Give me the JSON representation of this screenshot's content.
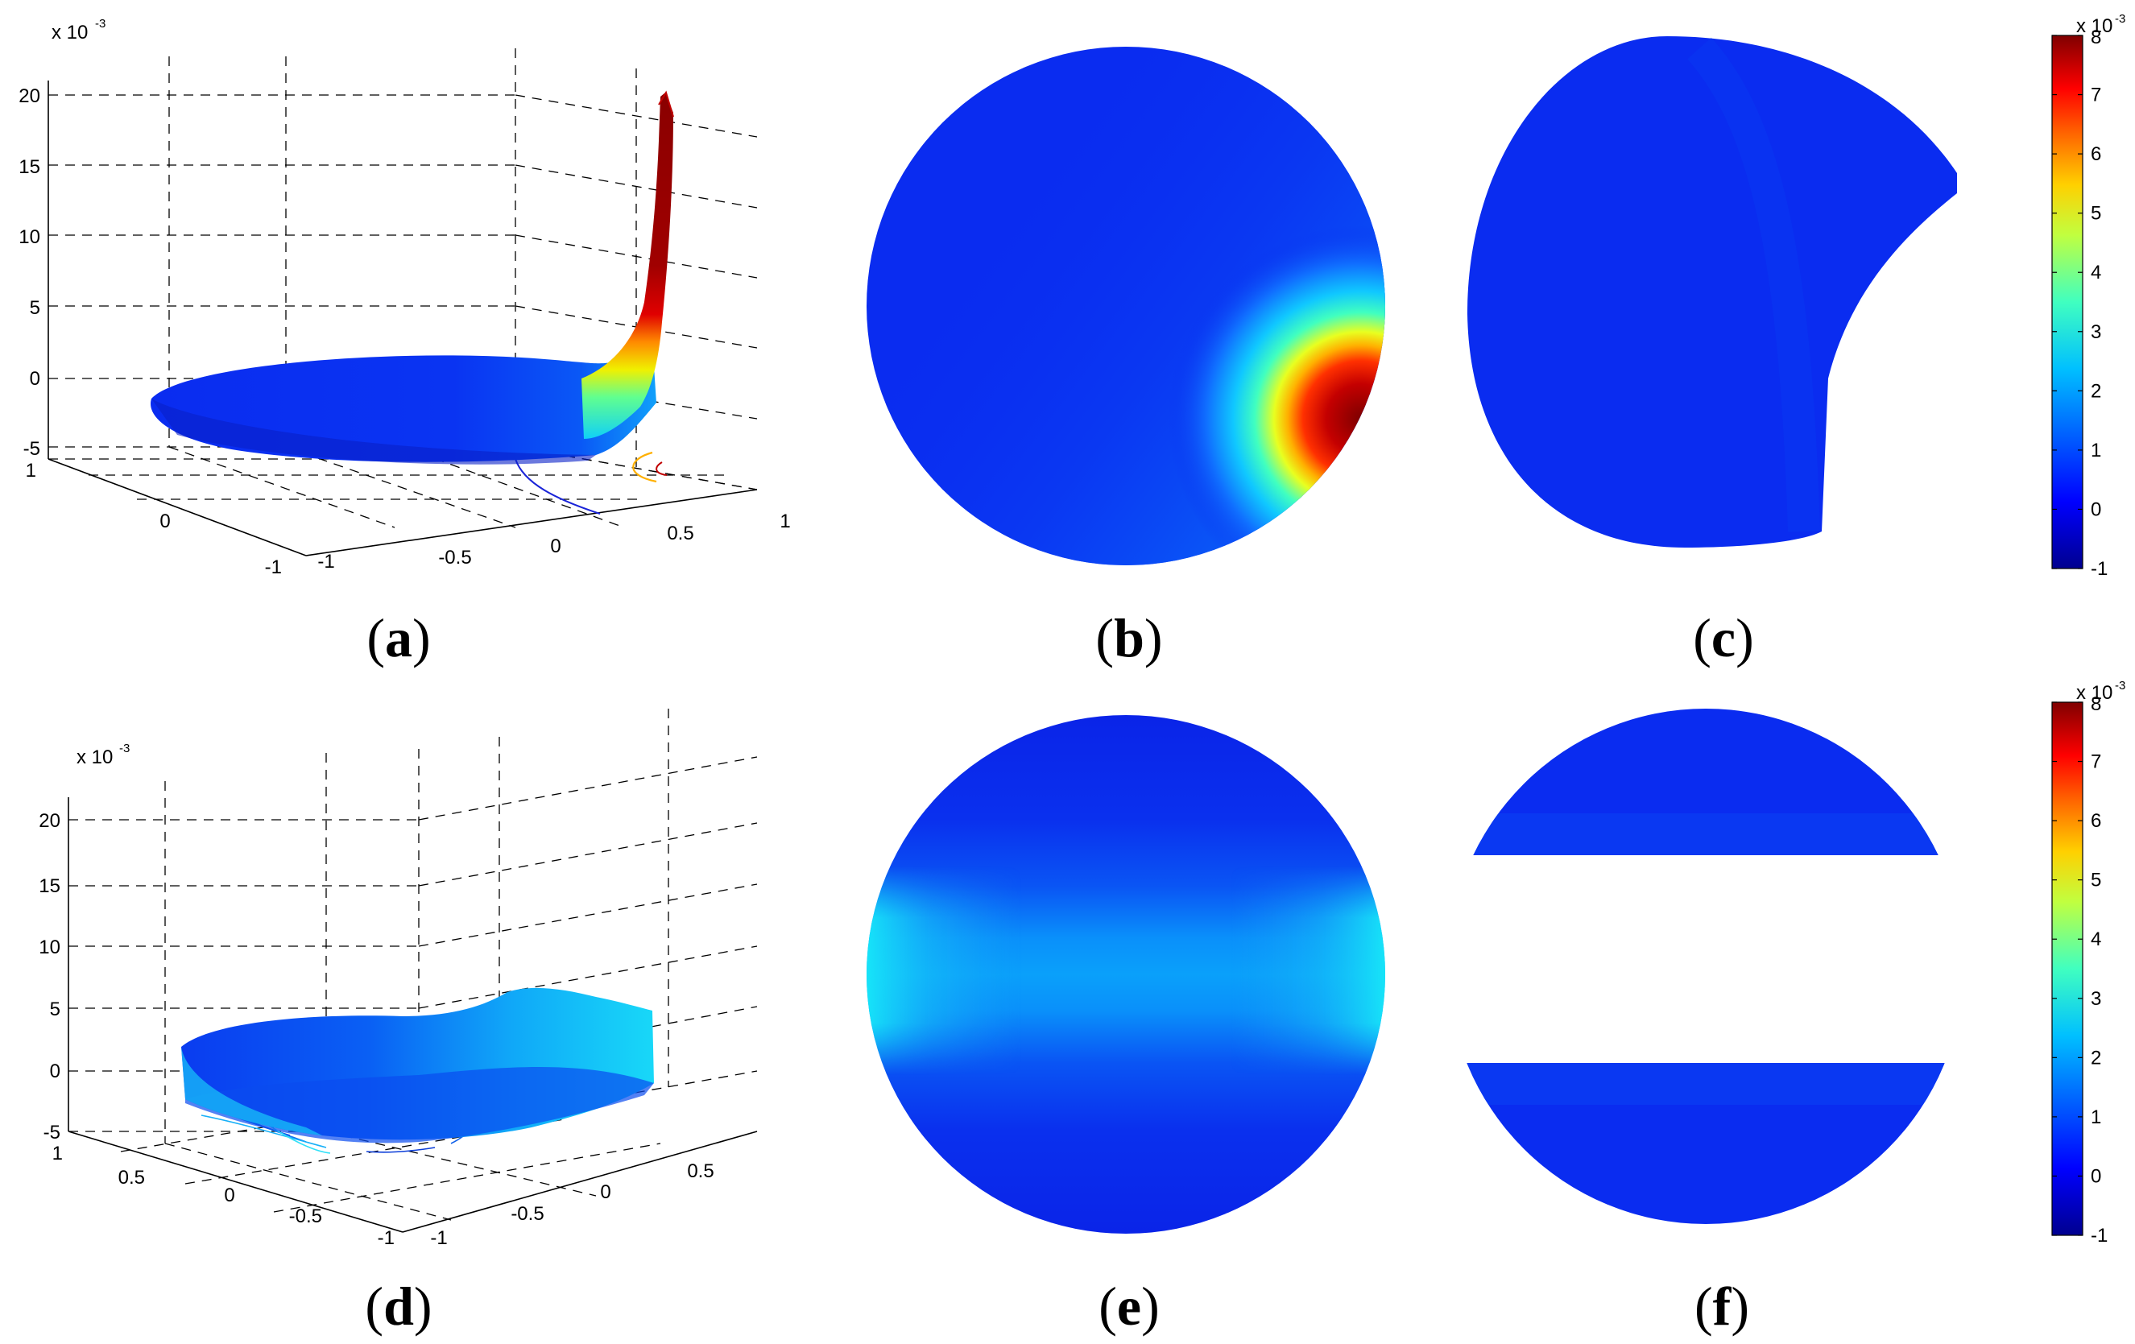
{
  "chart_data": [
    {
      "panel": "a",
      "type": "surface3d",
      "caption": "(a)",
      "z_ticks": [
        "20",
        "15",
        "10",
        "5",
        "0",
        "-5"
      ],
      "z_exponent": "x 10",
      "z_exponent_power": "-3",
      "x_ticks": [
        "-1",
        "-0.5",
        "0",
        "0.5",
        "1"
      ],
      "y_ticks": [
        "1",
        "0",
        "-1"
      ],
      "zlim": [
        -5,
        20
      ],
      "surface_peak": 19.5,
      "peak_location": "x=1 edge",
      "colormap": "jet"
    },
    {
      "panel": "b",
      "type": "heatmap",
      "caption": "(b)",
      "shape": "disc",
      "hotspot": "right edge, below center",
      "hotspot_max": 8,
      "colormap": "jet"
    },
    {
      "panel": "c",
      "type": "heatmap",
      "caption": "(c)",
      "shape": "disc with lower-right region removed",
      "colormap": "jet"
    },
    {
      "panel": "d",
      "type": "surface3d",
      "caption": "(d)",
      "z_ticks": [
        "20",
        "15",
        "10",
        "5",
        "0",
        "-5"
      ],
      "z_exponent": "x 10",
      "z_exponent_power": "-3",
      "x_ticks": [
        "-1",
        "-0.5",
        "0",
        "0.5"
      ],
      "y_ticks": [
        "1",
        "0.5",
        "0",
        "-0.5",
        "-1"
      ],
      "zlim": [
        -5,
        20
      ],
      "surface_peak": 4.5,
      "colormap": "jet"
    },
    {
      "panel": "e",
      "type": "heatmap",
      "caption": "(e)",
      "shape": "disc",
      "band": "horizontal band across center",
      "band_max": 2.3,
      "colormap": "jet"
    },
    {
      "panel": "f",
      "type": "heatmap",
      "caption": "(f)",
      "shape": "disc with central horizontal band removed",
      "colormap": "jet"
    }
  ],
  "colorbars": [
    {
      "exponent": "x 10",
      "exponent_power": "-3",
      "ticks": [
        "8",
        "7",
        "6",
        "5",
        "4",
        "3",
        "2",
        "1",
        "0",
        "-1"
      ],
      "range": [
        -1,
        8
      ],
      "colors": [
        "#00008f",
        "#0000ff",
        "#0080ff",
        "#00ffff",
        "#80ff80",
        "#ffff00",
        "#ff8000",
        "#ff0000",
        "#800000"
      ]
    },
    {
      "exponent": "x 10",
      "exponent_power": "-3",
      "ticks": [
        "8",
        "7",
        "6",
        "5",
        "4",
        "3",
        "2",
        "1",
        "0",
        "-1"
      ],
      "range": [
        -1,
        8
      ],
      "colors": [
        "#00008f",
        "#0000ff",
        "#0080ff",
        "#00ffff",
        "#80ff80",
        "#ffff00",
        "#ff8000",
        "#ff0000",
        "#800000"
      ]
    }
  ],
  "colors": {
    "base_blue": "#0a2cf0",
    "mid_blue": "#0a6cf6",
    "cyan": "#10e8f8",
    "red": "#c40000",
    "dark_red": "#8a0000",
    "yellow": "#f6f000",
    "orange": "#ff8a00"
  }
}
